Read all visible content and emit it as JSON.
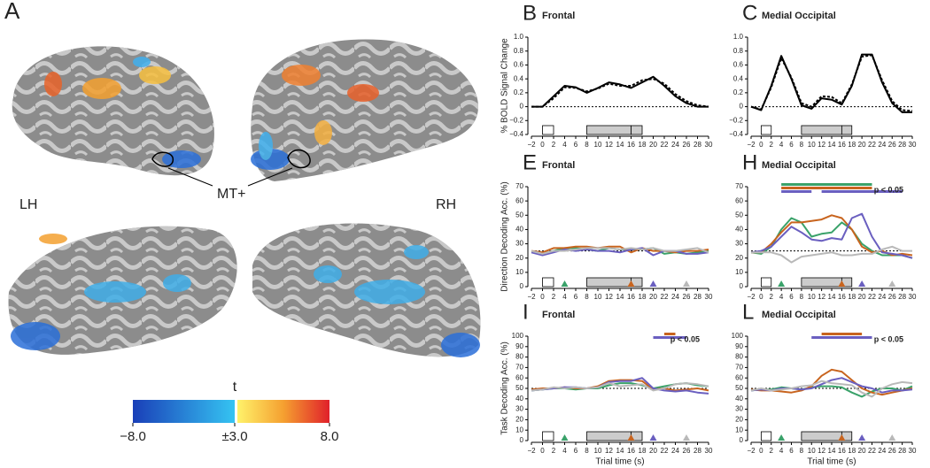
{
  "panel_a": {
    "label": "A",
    "left_label": "LH",
    "right_label": "RH",
    "roi_label": "MT+",
    "colorbar": {
      "title": "t",
      "clim": [
        -8,
        8
      ],
      "threshold": 3,
      "ticks": [
        {
          "value": -8,
          "label": "−8.0"
        },
        {
          "value": 3,
          "label": "±3.0"
        },
        {
          "value": 8,
          "label": "8.0"
        }
      ]
    }
  },
  "chart_data": [
    {
      "type": "line",
      "panel": "B",
      "title": "Frontal",
      "y_label": "% BOLD Signal Change",
      "x": [
        -2,
        0,
        2,
        4,
        6,
        8,
        10,
        12,
        14,
        16,
        18,
        20,
        22,
        24,
        26,
        28,
        30
      ],
      "series": [
        {
          "color": "#000000",
          "dash": false,
          "values": [
            0,
            0,
            0.15,
            0.3,
            0.28,
            0.2,
            0.27,
            0.35,
            0.32,
            0.27,
            0.35,
            0.43,
            0.3,
            0.15,
            0.05,
            0,
            0
          ]
        },
        {
          "color": "#000000",
          "dash": true,
          "values": [
            0,
            0,
            0.12,
            0.28,
            0.27,
            0.22,
            0.26,
            0.33,
            0.3,
            0.3,
            0.38,
            0.4,
            0.33,
            0.18,
            0.08,
            0.02,
            0
          ]
        }
      ],
      "xlim": [
        -2,
        30
      ],
      "ylim": [
        -0.4,
        1.0
      ],
      "xticks": [
        {
          "value": -2,
          "label": "−2"
        },
        0,
        2,
        4,
        6,
        8,
        10,
        12,
        14,
        16,
        18,
        20,
        22,
        24,
        26,
        28,
        30
      ],
      "yticks": [
        {
          "value": -0.4,
          "label": "−0.4"
        },
        {
          "value": -0.2,
          "label": "−0.2"
        },
        0,
        0.2,
        0.4,
        0.6,
        0.8,
        {
          "value": 1,
          "label": "1.0"
        }
      ],
      "reference_line": 0,
      "epochs": [
        {
          "x": [
            0,
            2
          ],
          "fill": "#ffffff"
        },
        {
          "x": [
            8,
            16
          ],
          "fill": "#cccccc"
        },
        {
          "x": [
            16,
            18
          ],
          "fill": "#cccccc"
        }
      ]
    },
    {
      "type": "line",
      "panel": "C",
      "title": "Medial Occipital",
      "x": [
        -2,
        0,
        2,
        4,
        6,
        8,
        10,
        12,
        14,
        16,
        18,
        20,
        22,
        24,
        26,
        28,
        30
      ],
      "series": [
        {
          "color": "#000000",
          "dash": false,
          "values": [
            0,
            -0.05,
            0.3,
            0.73,
            0.4,
            0.02,
            -0.03,
            0.12,
            0.1,
            0.03,
            0.3,
            0.75,
            0.75,
            0.35,
            0.05,
            -0.08,
            -0.08
          ]
        },
        {
          "color": "#000000",
          "dash": true,
          "values": [
            0,
            -0.04,
            0.28,
            0.7,
            0.42,
            0.05,
            0,
            0.15,
            0.14,
            0.05,
            0.32,
            0.72,
            0.74,
            0.38,
            0.08,
            -0.05,
            -0.06
          ]
        }
      ],
      "xlim": [
        -2,
        30
      ],
      "ylim": [
        -0.4,
        1.0
      ],
      "xticks": [
        {
          "value": -2,
          "label": "−2"
        },
        0,
        2,
        4,
        6,
        8,
        10,
        12,
        14,
        16,
        18,
        20,
        22,
        24,
        26,
        28,
        30
      ],
      "yticks": [
        {
          "value": -0.4,
          "label": "−0.4"
        },
        {
          "value": -0.2,
          "label": "−0.2"
        },
        0,
        0.2,
        0.4,
        0.6,
        0.8,
        {
          "value": 1,
          "label": "1.0"
        }
      ],
      "reference_line": 0,
      "epochs": [
        {
          "x": [
            0,
            2
          ],
          "fill": "#ffffff"
        },
        {
          "x": [
            8,
            16
          ],
          "fill": "#cccccc"
        },
        {
          "x": [
            16,
            18
          ],
          "fill": "#cccccc"
        }
      ]
    },
    {
      "type": "line",
      "panel": "E",
      "title": "Frontal",
      "y_label": "Direction Decoding Acc. (%)",
      "x": [
        -2,
        0,
        2,
        4,
        6,
        8,
        10,
        12,
        14,
        16,
        18,
        20,
        22,
        24,
        26,
        28,
        30
      ],
      "series": [
        {
          "color": "#3aa26a",
          "values": [
            24,
            23,
            25,
            27,
            27,
            26,
            25,
            27,
            26,
            26,
            26,
            27,
            23,
            24,
            23,
            24,
            25
          ]
        },
        {
          "color": "#c8641e",
          "values": [
            25,
            24,
            27,
            27,
            28,
            28,
            27,
            28,
            28,
            24,
            27,
            25,
            25,
            24,
            25,
            25,
            26
          ]
        },
        {
          "color": "#6a5fc0",
          "values": [
            24,
            22,
            24,
            26,
            25,
            26,
            25,
            25,
            24,
            26,
            27,
            22,
            25,
            25,
            23,
            23,
            24
          ]
        },
        {
          "color": "#b9b9b9",
          "values": [
            25,
            23,
            25,
            25,
            26,
            27,
            27,
            27,
            26,
            27,
            26,
            27,
            25,
            25,
            26,
            27,
            24
          ]
        }
      ],
      "xlim": [
        -2,
        30
      ],
      "ylim": [
        0,
        70
      ],
      "xticks": [
        {
          "value": -2,
          "label": "−2"
        },
        0,
        2,
        4,
        6,
        8,
        10,
        12,
        14,
        16,
        18,
        20,
        22,
        24,
        26,
        28,
        30
      ],
      "yticks": [
        0,
        10,
        20,
        30,
        40,
        50,
        60,
        70
      ],
      "reference_line": 25,
      "epochs": [
        {
          "x": [
            0,
            2
          ],
          "fill": "#ffffff"
        },
        {
          "x": [
            8,
            16
          ],
          "fill": "#cccccc"
        },
        {
          "x": [
            16,
            18
          ],
          "fill": "#cccccc"
        }
      ],
      "event_markers": [
        {
          "x": 4,
          "color": "#3aa26a"
        },
        {
          "x": 16,
          "color": "#c8641e"
        },
        {
          "x": 20,
          "color": "#6a5fc0"
        },
        {
          "x": 26,
          "color": "#b9b9b9"
        }
      ]
    },
    {
      "type": "line",
      "panel": "H",
      "title": "Medial Occipital",
      "x": [
        -2,
        0,
        2,
        4,
        6,
        8,
        10,
        12,
        14,
        16,
        18,
        20,
        22,
        24,
        26,
        28,
        30
      ],
      "series": [
        {
          "color": "#3aa26a",
          "values": [
            24,
            23,
            28,
            40,
            48,
            45,
            35,
            37,
            38,
            45,
            40,
            30,
            25,
            22,
            22,
            22,
            20
          ]
        },
        {
          "color": "#c8641e",
          "values": [
            24,
            24,
            30,
            38,
            45,
            45,
            46,
            47,
            50,
            48,
            40,
            28,
            24,
            25,
            22,
            23,
            22
          ]
        },
        {
          "color": "#6a5fc0",
          "values": [
            24,
            25,
            28,
            35,
            42,
            38,
            33,
            32,
            34,
            33,
            48,
            51,
            35,
            24,
            23,
            22,
            20
          ]
        },
        {
          "color": "#b9b9b9",
          "values": [
            24,
            24,
            24,
            22,
            17,
            21,
            22,
            23,
            24,
            22,
            22,
            23,
            23,
            26,
            28,
            25,
            25
          ]
        }
      ],
      "xlim": [
        -2,
        30
      ],
      "ylim": [
        0,
        70
      ],
      "xticks": [
        {
          "value": -2,
          "label": "−2"
        },
        0,
        2,
        4,
        6,
        8,
        10,
        12,
        14,
        16,
        18,
        20,
        22,
        24,
        26,
        28,
        30
      ],
      "yticks": [
        0,
        10,
        20,
        30,
        40,
        50,
        60,
        70
      ],
      "reference_line": 25,
      "epochs": [
        {
          "x": [
            0,
            2
          ],
          "fill": "#ffffff"
        },
        {
          "x": [
            8,
            16
          ],
          "fill": "#cccccc"
        },
        {
          "x": [
            16,
            18
          ],
          "fill": "#cccccc"
        }
      ],
      "event_markers": [
        {
          "x": 4,
          "color": "#3aa26a"
        },
        {
          "x": 16,
          "color": "#c8641e"
        },
        {
          "x": 20,
          "color": "#6a5fc0"
        },
        {
          "x": 26,
          "color": "#b9b9b9"
        }
      ],
      "significance_label": "p < 0.05",
      "significance_bars": [
        {
          "color": "#3aa26a",
          "x": [
            4,
            22
          ]
        },
        {
          "color": "#c8641e",
          "x": [
            4,
            22
          ]
        },
        {
          "color": "#6a5fc0",
          "x": [
            4,
            10
          ]
        },
        {
          "color": "#6a5fc0",
          "x": [
            12,
            28
          ]
        }
      ]
    },
    {
      "type": "line",
      "panel": "I",
      "title": "Frontal",
      "y_label": "Task Decoding Acc. (%)",
      "x_label": "Trial time (s)",
      "x": [
        -2,
        0,
        2,
        4,
        6,
        8,
        10,
        12,
        14,
        16,
        18,
        20,
        22,
        24,
        26,
        28,
        30
      ],
      "series": [
        {
          "color": "#3aa26a",
          "values": [
            48,
            49,
            50,
            50,
            49,
            50,
            50,
            53,
            55,
            55,
            53,
            50,
            52,
            54,
            55,
            53,
            52
          ]
        },
        {
          "color": "#c8641e",
          "values": [
            49,
            50,
            50,
            51,
            50,
            50,
            52,
            57,
            58,
            58,
            57,
            49,
            50,
            48,
            49,
            50,
            48
          ]
        },
        {
          "color": "#6a5fc0",
          "values": [
            48,
            49,
            50,
            51,
            51,
            50,
            51,
            56,
            57,
            57,
            60,
            50,
            48,
            47,
            48,
            46,
            45
          ]
        },
        {
          "color": "#b9b9b9",
          "values": [
            48,
            49,
            51,
            50,
            51,
            50,
            51,
            55,
            52,
            53,
            54,
            48,
            50,
            54,
            55,
            54,
            52
          ]
        }
      ],
      "xlim": [
        -2,
        30
      ],
      "ylim": [
        0,
        100
      ],
      "xticks": [
        {
          "value": -2,
          "label": "−2"
        },
        0,
        2,
        4,
        6,
        8,
        10,
        12,
        14,
        16,
        18,
        20,
        22,
        24,
        26,
        28,
        30
      ],
      "yticks": [
        0,
        10,
        20,
        30,
        40,
        50,
        60,
        70,
        80,
        90,
        100
      ],
      "reference_line": 50,
      "epochs": [
        {
          "x": [
            0,
            2
          ],
          "fill": "#ffffff"
        },
        {
          "x": [
            8,
            16
          ],
          "fill": "#cccccc"
        },
        {
          "x": [
            16,
            18
          ],
          "fill": "#cccccc"
        }
      ],
      "event_markers": [
        {
          "x": 4,
          "color": "#3aa26a"
        },
        {
          "x": 16,
          "color": "#c8641e"
        },
        {
          "x": 20,
          "color": "#6a5fc0"
        },
        {
          "x": 26,
          "color": "#b9b9b9"
        }
      ],
      "significance_label": "p < 0.05",
      "significance_bars": [
        {
          "color": "#c8641e",
          "x": [
            22,
            24
          ]
        },
        {
          "color": "#6a5fc0",
          "x": [
            20,
            26
          ]
        }
      ]
    },
    {
      "type": "line",
      "panel": "L",
      "title": "Medial Occipital",
      "x_label": "Trial time (s)",
      "x": [
        -2,
        0,
        2,
        4,
        6,
        8,
        10,
        12,
        14,
        16,
        18,
        20,
        22,
        24,
        26,
        28,
        30
      ],
      "series": [
        {
          "color": "#3aa26a",
          "values": [
            48,
            49,
            49,
            51,
            50,
            49,
            51,
            52,
            52,
            51,
            46,
            42,
            47,
            50,
            50,
            48,
            52
          ]
        },
        {
          "color": "#c8641e",
          "values": [
            49,
            48,
            48,
            47,
            46,
            48,
            52,
            62,
            68,
            66,
            58,
            50,
            46,
            44,
            46,
            48,
            50
          ]
        },
        {
          "color": "#6a5fc0",
          "values": [
            48,
            49,
            48,
            50,
            50,
            49,
            50,
            54,
            58,
            60,
            56,
            52,
            50,
            46,
            48,
            48,
            49
          ]
        },
        {
          "color": "#b9b9b9",
          "values": [
            48,
            50,
            48,
            49,
            50,
            52,
            53,
            57,
            55,
            54,
            53,
            46,
            42,
            50,
            54,
            56,
            55
          ]
        }
      ],
      "xlim": [
        -2,
        30
      ],
      "ylim": [
        0,
        100
      ],
      "xticks": [
        {
          "value": -2,
          "label": "−2"
        },
        0,
        2,
        4,
        6,
        8,
        10,
        12,
        14,
        16,
        18,
        20,
        22,
        24,
        26,
        28,
        30
      ],
      "yticks": [
        0,
        10,
        20,
        30,
        40,
        50,
        60,
        70,
        80,
        90,
        100
      ],
      "reference_line": 50,
      "epochs": [
        {
          "x": [
            0,
            2
          ],
          "fill": "#ffffff"
        },
        {
          "x": [
            8,
            16
          ],
          "fill": "#cccccc"
        },
        {
          "x": [
            16,
            18
          ],
          "fill": "#cccccc"
        }
      ],
      "event_markers": [
        {
          "x": 4,
          "color": "#3aa26a"
        },
        {
          "x": 16,
          "color": "#c8641e"
        },
        {
          "x": 20,
          "color": "#6a5fc0"
        },
        {
          "x": 26,
          "color": "#b9b9b9"
        }
      ],
      "significance_label": "p < 0.05",
      "significance_bars": [
        {
          "color": "#c8641e",
          "x": [
            12,
            20
          ]
        },
        {
          "color": "#6a5fc0",
          "x": [
            10,
            22
          ]
        }
      ]
    }
  ]
}
